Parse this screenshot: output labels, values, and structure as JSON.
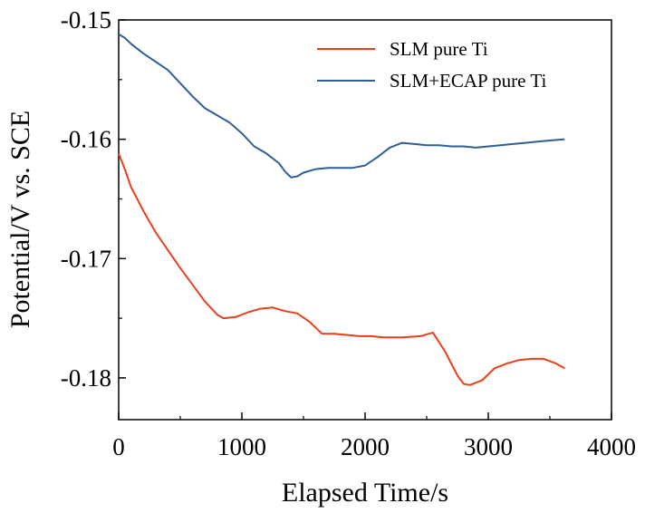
{
  "chart_data": {
    "type": "line",
    "xlabel": "Elapsed Time/s",
    "ylabel": "Potential/V vs. SCE",
    "xlim": [
      0,
      4000
    ],
    "ylim": [
      -0.1835,
      -0.15
    ],
    "x_ticks": [
      0,
      1000,
      2000,
      3000,
      4000
    ],
    "x_tick_labels": [
      "0",
      "1000",
      "2000",
      "3000",
      "4000"
    ],
    "y_ticks": [
      -0.15,
      -0.16,
      -0.17,
      -0.18
    ],
    "y_tick_labels": [
      "-0.15",
      "-0.16",
      "-0.17",
      "-0.18"
    ],
    "grid": false,
    "legend_position": "top-right",
    "series": [
      {
        "name": "SLM pure Ti",
        "color": "#e8401c",
        "x": [
          0,
          50,
          100,
          200,
          300,
          400,
          500,
          600,
          700,
          800,
          850,
          950,
          1050,
          1150,
          1250,
          1350,
          1450,
          1550,
          1650,
          1750,
          1850,
          1950,
          2050,
          2150,
          2300,
          2450,
          2550,
          2650,
          2750,
          2800,
          2850,
          2950,
          3050,
          3150,
          3250,
          3350,
          3450,
          3550,
          3620
        ],
        "values": [
          -0.1612,
          -0.1625,
          -0.164,
          -0.166,
          -0.1678,
          -0.1693,
          -0.1708,
          -0.1722,
          -0.1736,
          -0.1747,
          -0.175,
          -0.1749,
          -0.1745,
          -0.1742,
          -0.1741,
          -0.1744,
          -0.1746,
          -0.1753,
          -0.1763,
          -0.1763,
          -0.1764,
          -0.1765,
          -0.1765,
          -0.1766,
          -0.1766,
          -0.1765,
          -0.1762,
          -0.1778,
          -0.1798,
          -0.1805,
          -0.1806,
          -0.1802,
          -0.1792,
          -0.1788,
          -0.1785,
          -0.1784,
          -0.1784,
          -0.1788,
          -0.1792
        ]
      },
      {
        "name": "SLM+ECAP pure Ti",
        "color": "#2e5f96",
        "x": [
          0,
          50,
          100,
          200,
          300,
          400,
          500,
          600,
          700,
          800,
          900,
          1000,
          1100,
          1200,
          1300,
          1350,
          1400,
          1450,
          1500,
          1600,
          1700,
          1800,
          1900,
          2000,
          2100,
          2200,
          2300,
          2400,
          2500,
          2600,
          2700,
          2800,
          2900,
          3000,
          3100,
          3200,
          3300,
          3400,
          3500,
          3620
        ],
        "values": [
          -0.1512,
          -0.1515,
          -0.152,
          -0.1528,
          -0.1535,
          -0.1542,
          -0.1553,
          -0.1564,
          -0.1574,
          -0.158,
          -0.1586,
          -0.1595,
          -0.1606,
          -0.1612,
          -0.162,
          -0.1627,
          -0.1632,
          -0.1631,
          -0.1628,
          -0.1625,
          -0.1624,
          -0.1624,
          -0.1624,
          -0.1622,
          -0.1615,
          -0.1607,
          -0.1603,
          -0.1604,
          -0.1605,
          -0.1605,
          -0.1606,
          -0.1606,
          -0.1607,
          -0.1606,
          -0.1605,
          -0.1604,
          -0.1603,
          -0.1602,
          -0.1601,
          -0.16
        ]
      }
    ]
  }
}
